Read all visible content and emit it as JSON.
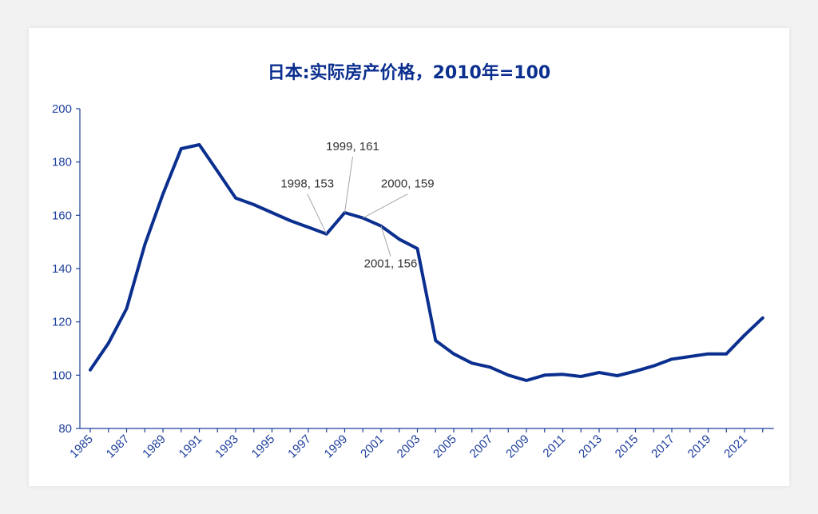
{
  "chart_data": {
    "type": "line",
    "title": "日本:实际房产价格，2010年=100",
    "xlabel": "",
    "ylabel": "",
    "ylim": [
      80,
      200
    ],
    "yticks": [
      "80",
      "100",
      "120",
      "140",
      "160",
      "180",
      "200"
    ],
    "xticks": [
      "1985",
      "1987",
      "1989",
      "1991",
      "1993",
      "1995",
      "1997",
      "1999",
      "2001",
      "2003",
      "2005",
      "2007",
      "2009",
      "2011",
      "2013",
      "2015",
      "2017",
      "2019",
      "2021"
    ],
    "x": [
      1985,
      1986,
      1987,
      1988,
      1989,
      1990,
      1991,
      1992,
      1993,
      1994,
      1995,
      1996,
      1997,
      1998,
      1999,
      2000,
      2001,
      2002,
      2003,
      2004,
      2005,
      2006,
      2007,
      2008,
      2009,
      2010,
      2011,
      2012,
      2013,
      2014,
      2015,
      2016,
      2017,
      2018,
      2019,
      2020,
      2021,
      2022
    ],
    "series": [
      {
        "values": [
          102,
          112,
          125,
          149,
          168,
          185,
          186.5,
          176.5,
          166.5,
          164,
          161,
          158,
          155.5,
          153,
          161,
          159,
          156,
          151,
          147.5,
          113,
          108,
          104.5,
          103,
          100,
          98,
          100,
          100.3,
          99.5,
          101,
          99.8,
          101.5,
          103.5,
          106,
          107,
          108,
          108,
          115,
          121.5
        ],
        "color": "#0b2f8f"
      }
    ],
    "annotations": [
      {
        "text": "1998, 153",
        "x": 1998,
        "y": 153
      },
      {
        "text": "1999, 161",
        "x": 1999,
        "y": 161
      },
      {
        "text": "2000, 159",
        "x": 2000,
        "y": 159
      },
      {
        "text": "2001, 156",
        "x": 2001,
        "y": 156
      }
    ],
    "grid": false,
    "legend": "none"
  }
}
